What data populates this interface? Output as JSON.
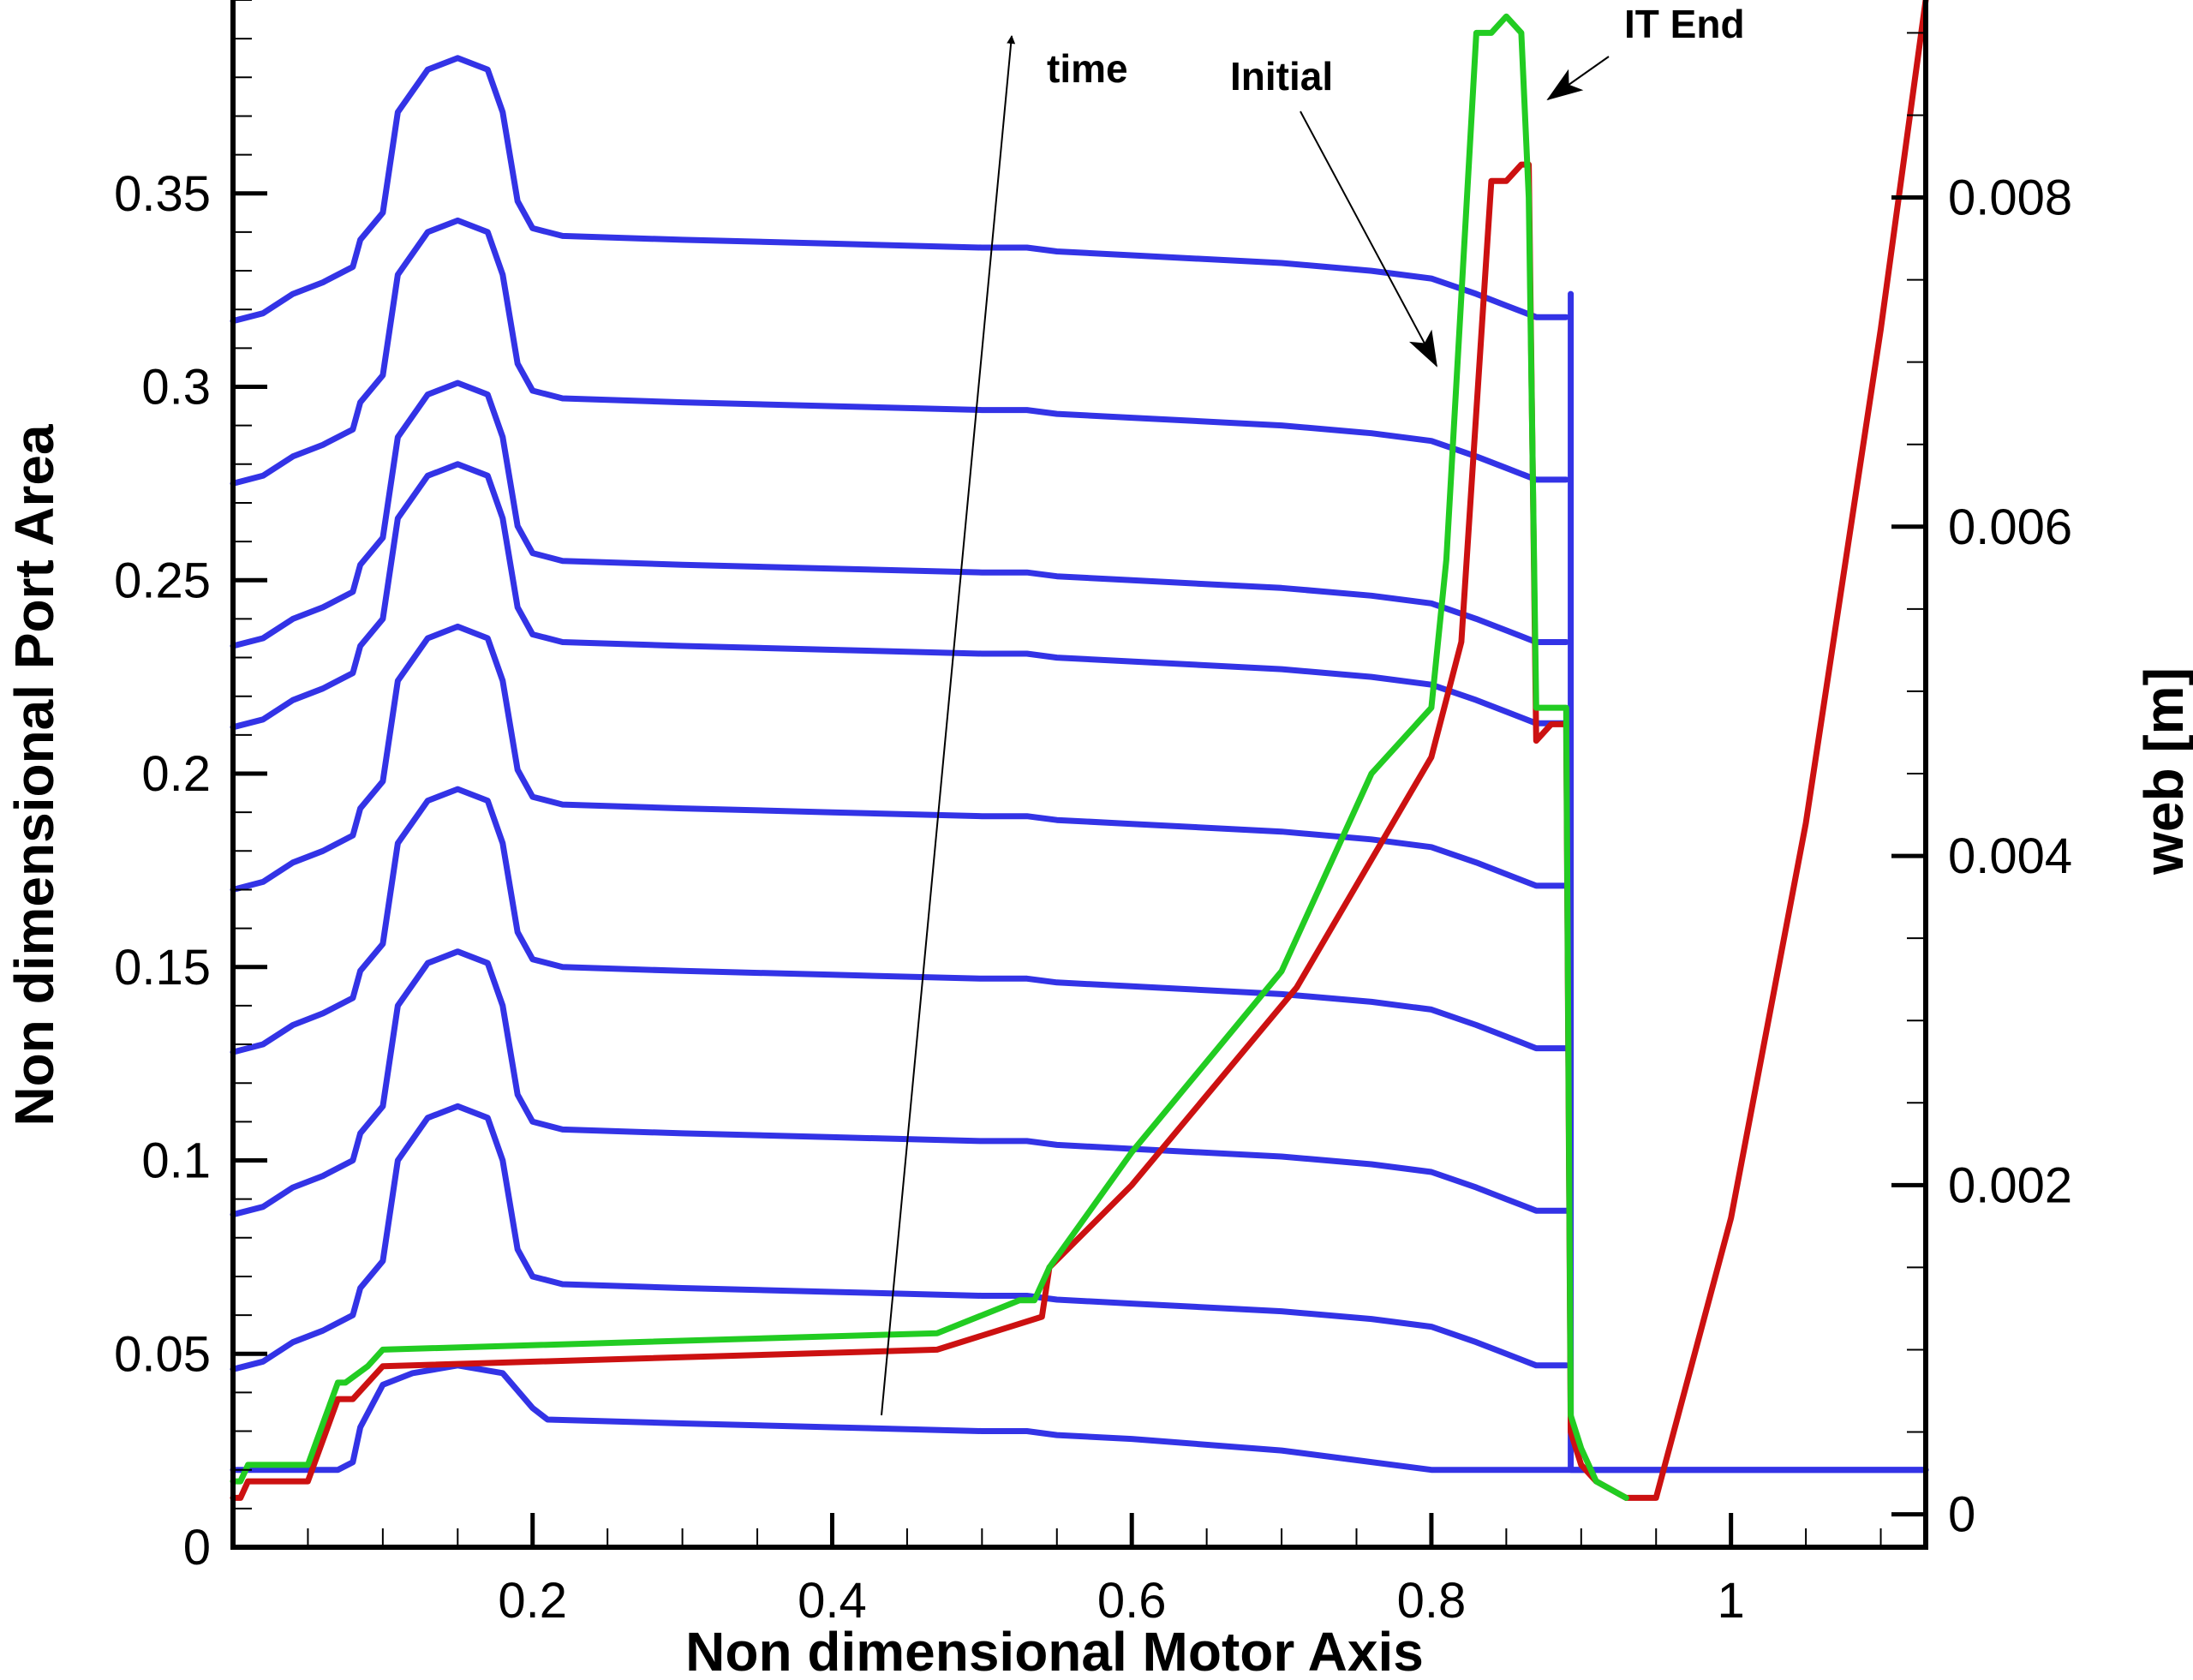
{
  "chart_data": {
    "type": "line",
    "xlabel": "Non dimensional Motor Axis",
    "ylabel_left": "Non dimensional Port Area",
    "ylabel_right": "web [m]",
    "xlim": [
      0.0,
      1.13
    ],
    "ylim_left": [
      0.0,
      0.4
    ],
    "ylim_right": [
      -0.0002,
      0.0092
    ],
    "x_ticks": [
      0.2,
      0.4,
      0.6,
      0.8,
      1
    ],
    "x_tick_labels": [
      "0.2",
      "0.4",
      "0.6",
      "0.8",
      "1"
    ],
    "y_left_ticks": [
      0,
      0.05,
      0.1,
      0.15,
      0.2,
      0.25,
      0.3,
      0.35
    ],
    "y_left_tick_labels": [
      "0",
      "0.05",
      "0.1",
      "0.15",
      "0.2",
      "0.25",
      "0.3",
      "0.35"
    ],
    "y_right_ticks": [
      0,
      0.002,
      0.004,
      0.006,
      0.008
    ],
    "y_right_tick_labels": [
      "0",
      "0.002",
      "0.004",
      "0.006",
      "0.008"
    ],
    "grid": false,
    "annotations": {
      "time": "time",
      "initial": "Initial",
      "it_end": "IT End"
    },
    "colors": {
      "port_area_profiles": "#3333e6",
      "initial_web": "#cc1111",
      "it_end_web": "#22cc22",
      "axes": "#000000"
    },
    "series": [
      {
        "axis": "left",
        "offset": 0.0,
        "x": [
          0,
          0.07,
          0.08,
          0.085,
          0.1,
          0.12,
          0.15,
          0.18,
          0.2,
          0.21,
          0.3,
          0.4,
          0.5,
          0.53,
          0.55,
          0.6,
          0.7,
          0.8,
          0.89,
          0.893,
          1.13
        ],
        "y": [
          0.02,
          0.02,
          0.022,
          0.031,
          0.042,
          0.045,
          0.047,
          0.045,
          0.036,
          0.033,
          0.032,
          0.031,
          0.03,
          0.03,
          0.029,
          0.028,
          0.025,
          0.02,
          0.02,
          0.02,
          0.02
        ]
      },
      {
        "axis": "left",
        "offset": 0.0,
        "x": [
          0,
          0.02,
          0.04,
          0.06,
          0.08,
          0.085,
          0.1,
          0.11,
          0.13,
          0.15,
          0.17,
          0.18,
          0.19,
          0.2,
          0.22,
          0.3,
          0.4,
          0.5,
          0.53,
          0.55,
          0.6,
          0.7,
          0.76,
          0.8,
          0.83,
          0.85,
          0.87,
          0.89
        ],
        "y": [
          0.046,
          0.048,
          0.053,
          0.056,
          0.06,
          0.067,
          0.074,
          0.1,
          0.111,
          0.114,
          0.111,
          0.1,
          0.077,
          0.07,
          0.068,
          0.067,
          0.066,
          0.065,
          0.065,
          0.064,
          0.063,
          0.061,
          0.059,
          0.057,
          0.053,
          0.05,
          0.047,
          0.047
        ]
      },
      {
        "axis": "left",
        "offset": 0.04,
        "x": [
          0,
          0.02,
          0.04,
          0.06,
          0.08,
          0.085,
          0.1,
          0.11,
          0.13,
          0.15,
          0.17,
          0.18,
          0.19,
          0.2,
          0.22,
          0.3,
          0.4,
          0.5,
          0.53,
          0.55,
          0.6,
          0.7,
          0.76,
          0.8,
          0.83,
          0.85,
          0.87,
          0.89
        ],
        "y": [
          0.046,
          0.048,
          0.053,
          0.056,
          0.06,
          0.067,
          0.074,
          0.1,
          0.111,
          0.114,
          0.111,
          0.1,
          0.077,
          0.07,
          0.068,
          0.067,
          0.066,
          0.065,
          0.065,
          0.064,
          0.063,
          0.061,
          0.059,
          0.057,
          0.053,
          0.05,
          0.047,
          0.047
        ]
      },
      {
        "axis": "left",
        "offset": 0.082,
        "x": [
          0,
          0.02,
          0.04,
          0.06,
          0.08,
          0.085,
          0.1,
          0.11,
          0.13,
          0.15,
          0.17,
          0.18,
          0.19,
          0.2,
          0.22,
          0.3,
          0.4,
          0.5,
          0.53,
          0.55,
          0.6,
          0.7,
          0.76,
          0.8,
          0.83,
          0.85,
          0.87,
          0.89
        ],
        "y": [
          0.046,
          0.048,
          0.053,
          0.056,
          0.06,
          0.067,
          0.074,
          0.1,
          0.111,
          0.114,
          0.111,
          0.1,
          0.077,
          0.07,
          0.068,
          0.067,
          0.066,
          0.065,
          0.065,
          0.064,
          0.063,
          0.061,
          0.059,
          0.057,
          0.053,
          0.05,
          0.047,
          0.047
        ]
      },
      {
        "axis": "left",
        "offset": 0.124,
        "x": [
          0,
          0.02,
          0.04,
          0.06,
          0.08,
          0.085,
          0.1,
          0.11,
          0.13,
          0.15,
          0.17,
          0.18,
          0.19,
          0.2,
          0.22,
          0.3,
          0.4,
          0.5,
          0.53,
          0.55,
          0.6,
          0.7,
          0.76,
          0.8,
          0.83,
          0.85,
          0.87,
          0.89
        ],
        "y": [
          0.046,
          0.048,
          0.053,
          0.056,
          0.06,
          0.067,
          0.074,
          0.1,
          0.111,
          0.114,
          0.111,
          0.1,
          0.077,
          0.07,
          0.068,
          0.067,
          0.066,
          0.065,
          0.065,
          0.064,
          0.063,
          0.061,
          0.059,
          0.057,
          0.053,
          0.05,
          0.047,
          0.047
        ]
      },
      {
        "axis": "left",
        "offset": 0.166,
        "x": [
          0,
          0.02,
          0.04,
          0.06,
          0.08,
          0.085,
          0.1,
          0.11,
          0.13,
          0.15,
          0.17,
          0.18,
          0.19,
          0.2,
          0.22,
          0.3,
          0.4,
          0.5,
          0.53,
          0.55,
          0.6,
          0.7,
          0.76,
          0.8,
          0.83,
          0.85,
          0.87,
          0.89
        ],
        "y": [
          0.046,
          0.048,
          0.053,
          0.056,
          0.06,
          0.067,
          0.074,
          0.1,
          0.111,
          0.114,
          0.111,
          0.1,
          0.077,
          0.07,
          0.068,
          0.067,
          0.066,
          0.065,
          0.065,
          0.064,
          0.063,
          0.061,
          0.059,
          0.057,
          0.053,
          0.05,
          0.047,
          0.047
        ]
      },
      {
        "axis": "left",
        "offset": 0.187,
        "x": [
          0,
          0.02,
          0.04,
          0.06,
          0.08,
          0.085,
          0.1,
          0.11,
          0.13,
          0.15,
          0.17,
          0.18,
          0.19,
          0.2,
          0.22,
          0.3,
          0.4,
          0.5,
          0.53,
          0.55,
          0.6,
          0.7,
          0.76,
          0.8,
          0.83,
          0.85,
          0.87,
          0.89
        ],
        "y": [
          0.046,
          0.048,
          0.053,
          0.056,
          0.06,
          0.067,
          0.074,
          0.1,
          0.111,
          0.114,
          0.111,
          0.1,
          0.077,
          0.07,
          0.068,
          0.067,
          0.066,
          0.065,
          0.065,
          0.064,
          0.063,
          0.061,
          0.059,
          0.057,
          0.053,
          0.05,
          0.047,
          0.047
        ]
      },
      {
        "axis": "left",
        "offset": 0.229,
        "x": [
          0,
          0.02,
          0.04,
          0.06,
          0.08,
          0.085,
          0.1,
          0.11,
          0.13,
          0.15,
          0.17,
          0.18,
          0.19,
          0.2,
          0.22,
          0.3,
          0.4,
          0.5,
          0.53,
          0.55,
          0.6,
          0.7,
          0.76,
          0.8,
          0.83,
          0.85,
          0.87,
          0.89
        ],
        "y": [
          0.046,
          0.048,
          0.053,
          0.056,
          0.06,
          0.067,
          0.074,
          0.1,
          0.111,
          0.114,
          0.111,
          0.1,
          0.077,
          0.07,
          0.068,
          0.067,
          0.066,
          0.065,
          0.065,
          0.064,
          0.063,
          0.061,
          0.059,
          0.057,
          0.053,
          0.05,
          0.047,
          0.047
        ]
      },
      {
        "axis": "left",
        "offset": 0.271,
        "x": [
          0,
          0.02,
          0.04,
          0.06,
          0.08,
          0.085,
          0.1,
          0.11,
          0.13,
          0.15,
          0.17,
          0.18,
          0.19,
          0.2,
          0.22,
          0.3,
          0.4,
          0.5,
          0.53,
          0.55,
          0.6,
          0.7,
          0.76,
          0.8,
          0.83,
          0.85,
          0.87,
          0.89
        ],
        "y": [
          0.046,
          0.048,
          0.053,
          0.056,
          0.06,
          0.067,
          0.074,
          0.1,
          0.111,
          0.114,
          0.111,
          0.1,
          0.077,
          0.07,
          0.068,
          0.067,
          0.066,
          0.065,
          0.065,
          0.064,
          0.063,
          0.061,
          0.059,
          0.057,
          0.053,
          0.05,
          0.047,
          0.047
        ]
      },
      {
        "axis": "left",
        "offset": 0.0,
        "x": [
          0.893,
          0.893,
          0.895,
          1.13
        ],
        "y": [
          0.324,
          0.02,
          0.02,
          0.02
        ]
      },
      {
        "axis": "right",
        "x": [
          0,
          0.005,
          0.01,
          0.05,
          0.07,
          0.08,
          0.09,
          0.1,
          0.47,
          0.54,
          0.545,
          0.6,
          0.71,
          0.8,
          0.82,
          0.84,
          0.85,
          0.86,
          0.865,
          0.87,
          0.88,
          0.89,
          0.893,
          0.9,
          0.91,
          0.93,
          0.95,
          1.0,
          1.05,
          1.1,
          1.13
        ],
        "y": [
          0.0001,
          0.0001,
          0.0002,
          0.0002,
          0.0007,
          0.0007,
          0.0008,
          0.0009,
          0.001,
          0.0012,
          0.0015,
          0.002,
          0.0032,
          0.0046,
          0.0053,
          0.0081,
          0.0081,
          0.0082,
          0.0082,
          0.0047,
          0.0048,
          0.0048,
          0.0005,
          0.0003,
          0.0002,
          0.0001,
          0.0001,
          0.0018,
          0.0042,
          0.0072,
          0.0092
        ]
      },
      {
        "axis": "right",
        "x": [
          0,
          0.005,
          0.01,
          0.05,
          0.07,
          0.075,
          0.09,
          0.1,
          0.47,
          0.525,
          0.535,
          0.54,
          0.545,
          0.6,
          0.7,
          0.76,
          0.8,
          0.81,
          0.83,
          0.84,
          0.85,
          0.86,
          0.865,
          0.87,
          0.873,
          0.88,
          0.89,
          0.893,
          0.9,
          0.91,
          0.93
        ],
        "y": [
          0.0002,
          0.0002,
          0.0003,
          0.0003,
          0.0008,
          0.0008,
          0.0009,
          0.001,
          0.0011,
          0.0013,
          0.0013,
          0.0014,
          0.0015,
          0.0022,
          0.0033,
          0.0045,
          0.0049,
          0.0058,
          0.009,
          0.009,
          0.0091,
          0.009,
          0.008,
          0.0049,
          0.0049,
          0.0049,
          0.0049,
          0.0006,
          0.0004,
          0.0002,
          0.0001
        ]
      }
    ]
  }
}
